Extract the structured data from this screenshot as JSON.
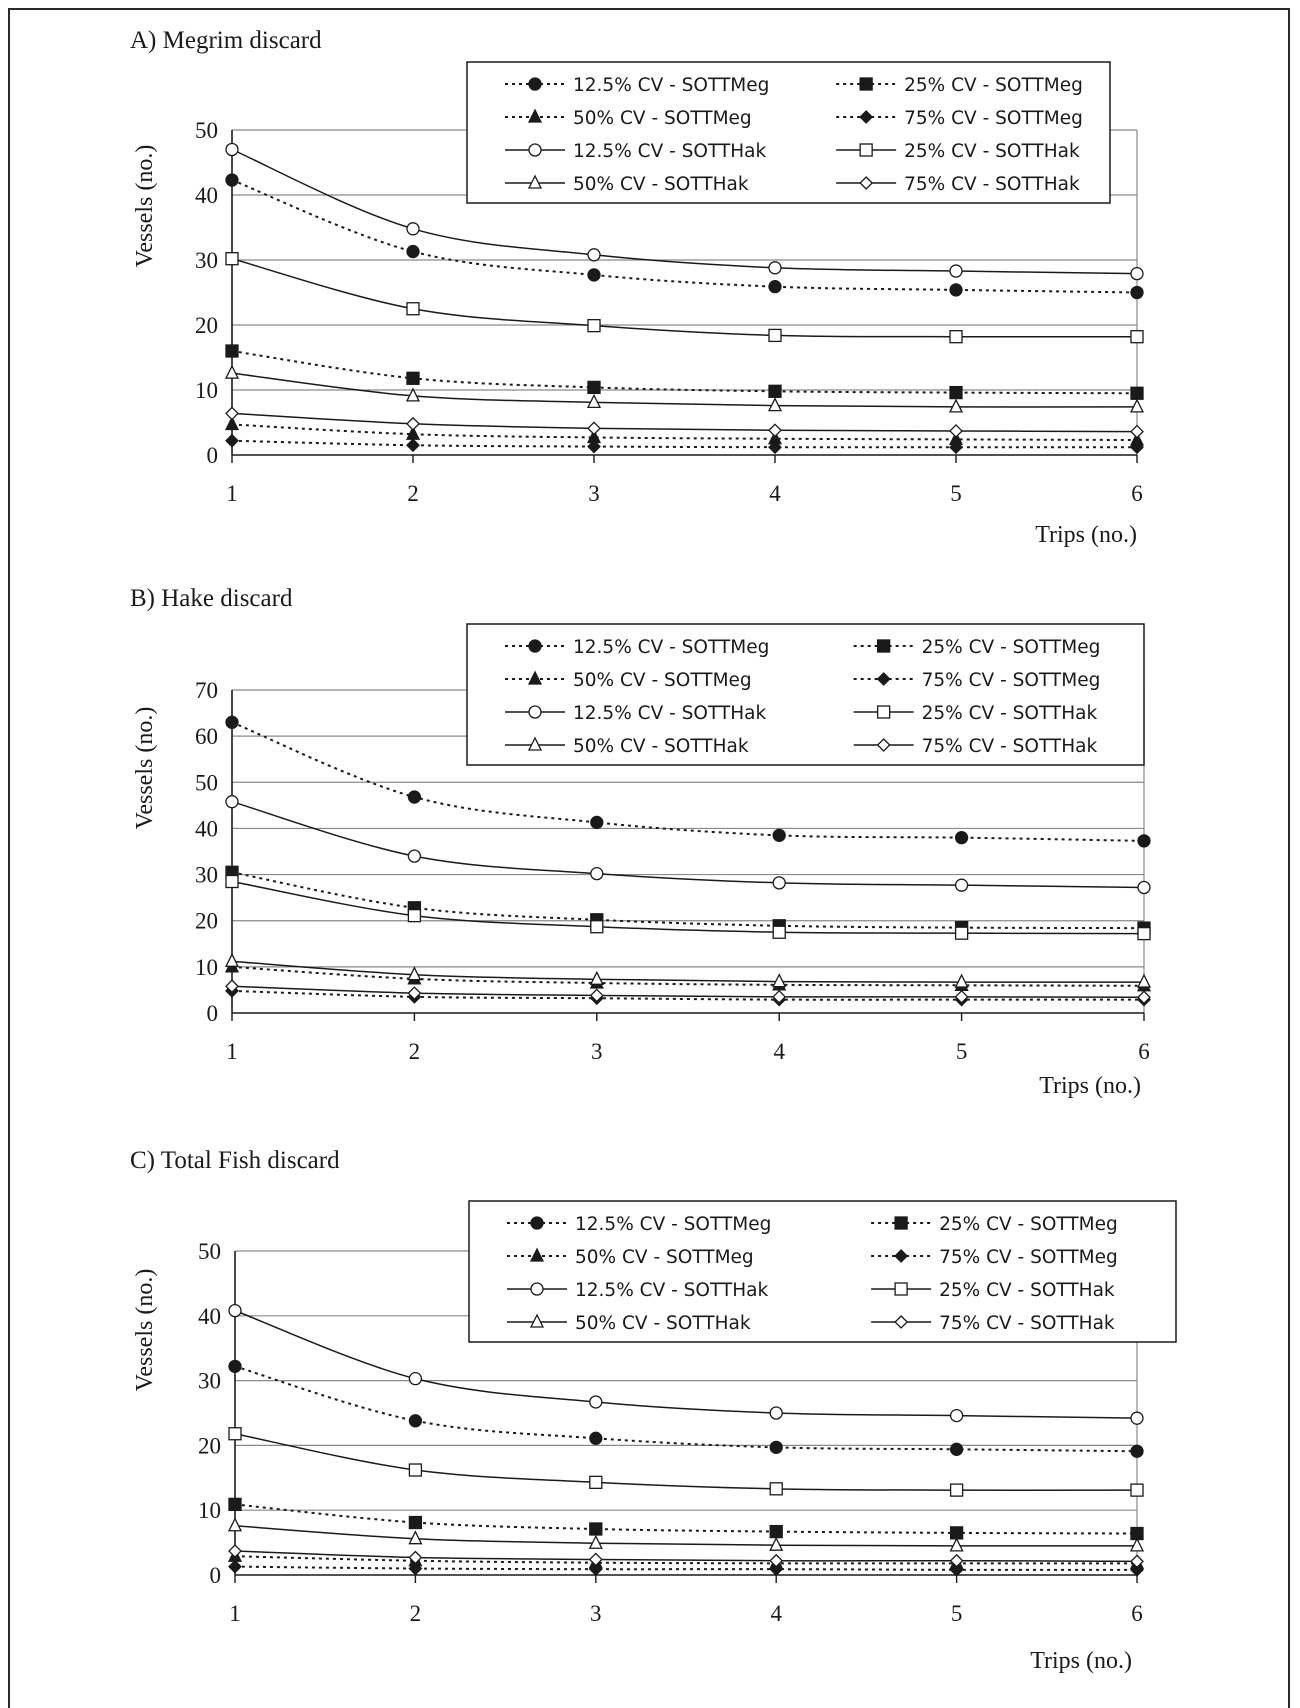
{
  "chart_data": [
    {
      "type": "line",
      "title": "A) Megrim discard",
      "xlabel": "Trips (no.)",
      "ylabel": "Vessels (no.)",
      "x": [
        1,
        2,
        3,
        4,
        5,
        6
      ],
      "xlim": [
        1,
        6
      ],
      "ylim": [
        0,
        50
      ],
      "yticks": [
        0,
        10,
        20,
        30,
        40,
        50
      ],
      "grid": true,
      "legend": "top-right",
      "series": [
        {
          "name": "12.5% CV - SOTTMeg",
          "style": "dotted",
          "marker": "filled-circle",
          "values": [
            42.3,
            31.3,
            27.7,
            25.9,
            25.4,
            25.0
          ]
        },
        {
          "name": "25% CV - SOTTMeg",
          "style": "dotted",
          "marker": "filled-square",
          "values": [
            16.0,
            11.8,
            10.4,
            9.8,
            9.6,
            9.5
          ]
        },
        {
          "name": "50% CV - SOTTMeg",
          "style": "dotted",
          "marker": "filled-triangle",
          "values": [
            4.7,
            3.2,
            2.7,
            2.5,
            2.4,
            2.3
          ]
        },
        {
          "name": "75% CV - SOTTMeg",
          "style": "dotted",
          "marker": "filled-diamond",
          "values": [
            2.2,
            1.5,
            1.3,
            1.2,
            1.2,
            1.2
          ]
        },
        {
          "name": "12.5% CV - SOTTHak",
          "style": "solid",
          "marker": "open-circle",
          "values": [
            47.0,
            34.8,
            30.8,
            28.8,
            28.3,
            27.9
          ]
        },
        {
          "name": "25% CV - SOTTHak",
          "style": "solid",
          "marker": "open-square",
          "values": [
            30.2,
            22.5,
            19.9,
            18.4,
            18.2,
            18.2
          ]
        },
        {
          "name": "50% CV - SOTTHak",
          "style": "solid",
          "marker": "open-triangle",
          "values": [
            12.6,
            9.1,
            8.1,
            7.6,
            7.4,
            7.4
          ]
        },
        {
          "name": "75% CV - SOTTHak",
          "style": "solid",
          "marker": "open-diamond",
          "values": [
            6.4,
            4.8,
            4.1,
            3.8,
            3.7,
            3.6
          ]
        }
      ]
    },
    {
      "type": "line",
      "title": "B) Hake discard",
      "xlabel": "Trips (no.)",
      "ylabel": "Vessels (no.)",
      "x": [
        1,
        2,
        3,
        4,
        5,
        6
      ],
      "xlim": [
        1,
        6
      ],
      "ylim": [
        0,
        70
      ],
      "yticks": [
        0,
        10,
        20,
        30,
        40,
        50,
        60,
        70
      ],
      "grid": true,
      "legend": "top-right",
      "series": [
        {
          "name": "12.5% CV - SOTTMeg",
          "style": "dotted",
          "marker": "filled-circle",
          "values": [
            63.0,
            46.8,
            41.3,
            38.5,
            38.0,
            37.3
          ]
        },
        {
          "name": "25% CV - SOTTMeg",
          "style": "dotted",
          "marker": "filled-square",
          "values": [
            30.5,
            22.8,
            20.2,
            18.9,
            18.5,
            18.4
          ]
        },
        {
          "name": "50% CV - SOTTMeg",
          "style": "dotted",
          "marker": "filled-triangle",
          "values": [
            10.0,
            7.4,
            6.5,
            6.1,
            6.0,
            5.9
          ]
        },
        {
          "name": "75% CV - SOTTMeg",
          "style": "dotted",
          "marker": "filled-diamond",
          "values": [
            4.8,
            3.5,
            3.2,
            2.9,
            2.9,
            2.9
          ]
        },
        {
          "name": "12.5% CV - SOTTHak",
          "style": "solid",
          "marker": "open-circle",
          "values": [
            45.8,
            34.0,
            30.2,
            28.2,
            27.7,
            27.2
          ]
        },
        {
          "name": "25% CV - SOTTHak",
          "style": "solid",
          "marker": "open-square",
          "values": [
            28.5,
            21.1,
            18.7,
            17.5,
            17.3,
            17.2
          ]
        },
        {
          "name": "50% CV - SOTTHak",
          "style": "solid",
          "marker": "open-triangle",
          "values": [
            11.2,
            8.3,
            7.3,
            6.8,
            6.7,
            6.7
          ]
        },
        {
          "name": "75% CV - SOTTHak",
          "style": "solid",
          "marker": "open-diamond",
          "values": [
            5.8,
            4.3,
            3.8,
            3.5,
            3.5,
            3.4
          ]
        }
      ]
    },
    {
      "type": "line",
      "title": "C) Total Fish discard",
      "xlabel": "Trips (no.)",
      "ylabel": "Vessels (no.)",
      "x": [
        1,
        2,
        3,
        4,
        5,
        6
      ],
      "xlim": [
        1,
        6
      ],
      "ylim": [
        0,
        50
      ],
      "yticks": [
        0,
        10,
        20,
        30,
        40,
        50
      ],
      "grid": true,
      "legend": "top-right",
      "series": [
        {
          "name": "12.5% CV - SOTTMeg",
          "style": "dotted",
          "marker": "filled-circle",
          "values": [
            32.2,
            23.8,
            21.1,
            19.7,
            19.4,
            19.1
          ]
        },
        {
          "name": "25% CV - SOTTMeg",
          "style": "dotted",
          "marker": "filled-square",
          "values": [
            10.9,
            8.1,
            7.1,
            6.7,
            6.5,
            6.4
          ]
        },
        {
          "name": "50% CV - SOTTMeg",
          "style": "dotted",
          "marker": "filled-triangle",
          "values": [
            2.9,
            2.2,
            1.9,
            1.8,
            1.8,
            1.8
          ]
        },
        {
          "name": "75% CV - SOTTMeg",
          "style": "dotted",
          "marker": "filled-diamond",
          "values": [
            1.3,
            1.0,
            0.9,
            0.9,
            0.8,
            0.8
          ]
        },
        {
          "name": "12.5% CV - SOTTHak",
          "style": "solid",
          "marker": "open-circle",
          "values": [
            40.8,
            30.3,
            26.7,
            25.0,
            24.6,
            24.2
          ]
        },
        {
          "name": "25% CV - SOTTHak",
          "style": "solid",
          "marker": "open-square",
          "values": [
            21.8,
            16.2,
            14.3,
            13.3,
            13.1,
            13.1
          ]
        },
        {
          "name": "50% CV - SOTTHak",
          "style": "solid",
          "marker": "open-triangle",
          "values": [
            7.6,
            5.6,
            4.9,
            4.6,
            4.5,
            4.5
          ]
        },
        {
          "name": "75% CV - SOTTHak",
          "style": "solid",
          "marker": "open-diamond",
          "values": [
            3.7,
            2.7,
            2.4,
            2.2,
            2.2,
            2.1
          ]
        }
      ]
    }
  ]
}
